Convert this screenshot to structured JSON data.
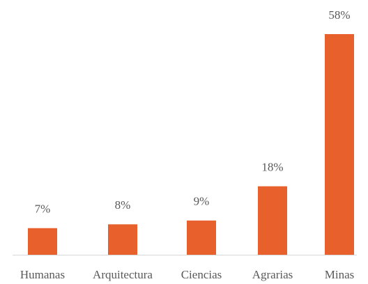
{
  "chart_data": {
    "type": "bar",
    "categories": [
      "Humanas",
      "Arquitectura",
      "Ciencias",
      "Agrarias",
      "Minas"
    ],
    "values": [
      7,
      8,
      9,
      18,
      58
    ],
    "value_labels": [
      "7%",
      "8%",
      "9%",
      "18%",
      "58%"
    ],
    "color": "#e8602c"
  }
}
